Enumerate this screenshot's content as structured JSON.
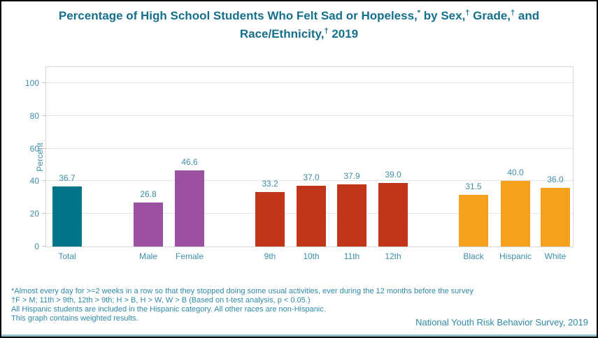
{
  "title": {
    "line1": [
      {
        "text": "Percentage of High School Students Who Felt Sad or Hopeless,"
      },
      {
        "text": "*",
        "sup": true
      },
      {
        "text": " by Sex,"
      },
      {
        "text": "†",
        "sup": true
      },
      {
        "text": " Grade,"
      },
      {
        "text": "†",
        "sup": true
      },
      {
        "text": " and"
      }
    ],
    "line2": [
      {
        "text": "Race/Ethnicity,"
      },
      {
        "text": "†",
        "sup": true
      },
      {
        "text": " 2019"
      }
    ]
  },
  "footnotes": [
    "*Almost every day for >=2 weeks in a row so that they stopped doing some usual activities, ever during the 12 months before the survey",
    "†F > M; 11th > 9th, 12th > 9th; H > B, H > W, W > B (Based on t-test analysis, p < 0.05.)",
    "All Hispanic students are included in the Hispanic category.  All other races are non-Hispanic.",
    "This graph contains weighted results."
  ],
  "attribution": "National Youth Risk Behavior Survey, 2019",
  "colors": {
    "title": "#166F8B",
    "axis_text": "#3E8EA7",
    "footnote_text": "#2F89A6",
    "attribution_text": "#2F89A6",
    "gridline": "#E5E5E5",
    "plot_border": "#D6D6D6",
    "tick": "#C4C4C4",
    "bottom_rule": "#8FBFC9",
    "frame_border": "#000000"
  },
  "chart_data": {
    "type": "bar",
    "title": "Percentage of High School Students Who Felt Sad or Hopeless, by Sex, Grade, and Race/Ethnicity, 2019",
    "xlabel": "",
    "ylabel": "Percent",
    "ylim": [
      0,
      110
    ],
    "yticks": [
      0,
      20,
      40,
      60,
      80,
      100
    ],
    "grid": true,
    "legend": "none",
    "groups": [
      {
        "name": "Total",
        "color": "#00758A",
        "bars": [
          {
            "label": "Total",
            "value": 36.7,
            "display": "36.7"
          }
        ]
      },
      {
        "name": "Sex",
        "color": "#9C50A0",
        "bars": [
          {
            "label": "Male",
            "value": 26.8,
            "display": "26.8"
          },
          {
            "label": "Female",
            "value": 46.6,
            "display": "46.6"
          }
        ]
      },
      {
        "name": "Grade",
        "color": "#C13519",
        "bars": [
          {
            "label": "9th",
            "value": 33.2,
            "display": "33.2"
          },
          {
            "label": "10th",
            "value": 37.0,
            "display": "37.0"
          },
          {
            "label": "11th",
            "value": 37.9,
            "display": "37.9"
          },
          {
            "label": "12th",
            "value": 39.0,
            "display": "39.0"
          }
        ]
      },
      {
        "name": "Race/Ethnicity",
        "color": "#F6A11E",
        "bars": [
          {
            "label": "Black",
            "value": 31.5,
            "display": "31.5"
          },
          {
            "label": "Hispanic",
            "value": 40.0,
            "display": "40.0"
          },
          {
            "label": "White",
            "value": 36.0,
            "display": "36.0"
          }
        ]
      }
    ]
  }
}
